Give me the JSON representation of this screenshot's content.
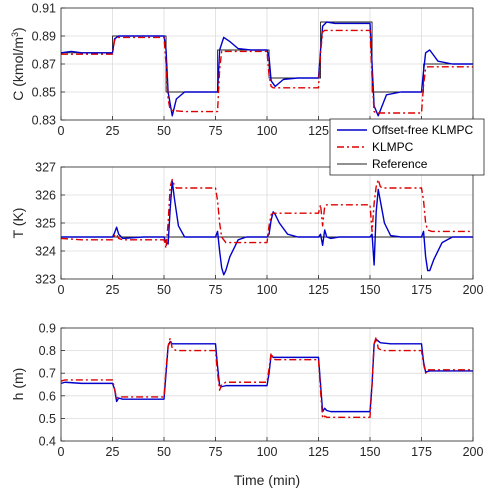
{
  "figure": {
    "xlabel": "Time (min)"
  },
  "legend": {
    "entries": [
      "Offset-free KLMPC",
      "KLMPC",
      "Reference"
    ]
  },
  "colors": {
    "offset_free": "#0000cc",
    "klmpc": "#dd0000",
    "reference": "#222222"
  },
  "chart_data": [
    {
      "type": "line",
      "ylabel_main": "C (kmol/m",
      "ylabel_sup": "3",
      "ylabel_end": ")",
      "xlim": [
        0,
        200
      ],
      "ylim": [
        0.83,
        0.91
      ],
      "xticks": [
        0,
        25,
        50,
        75,
        100,
        125,
        150,
        175,
        200
      ],
      "yticks": [
        0.83,
        0.85,
        0.87,
        0.89,
        0.91
      ],
      "grid": true,
      "legend": "bottom-right",
      "series": [
        {
          "name": "Reference",
          "style": "reference",
          "x": [
            0,
            25,
            25,
            51,
            51,
            76,
            76,
            101,
            101,
            126,
            126,
            151,
            151,
            176,
            176,
            200
          ],
          "y": [
            0.878,
            0.878,
            0.89,
            0.89,
            0.85,
            0.85,
            0.88,
            0.88,
            0.86,
            0.86,
            0.9,
            0.9,
            0.85,
            0.85,
            0.87,
            0.87
          ]
        },
        {
          "name": "Offset-free KLMPC",
          "style": "offset_free",
          "x": [
            0,
            5,
            10,
            15,
            20,
            25,
            26,
            28,
            32,
            40,
            50,
            51,
            52,
            54,
            56,
            60,
            70,
            76,
            77,
            79,
            82,
            86,
            92,
            100,
            101,
            102,
            104,
            108,
            115,
            125,
            126,
            127,
            129,
            133,
            140,
            150,
            151,
            152,
            154,
            158,
            165,
            175,
            176,
            177,
            179,
            183,
            190,
            200
          ],
          "y": [
            0.878,
            0.879,
            0.878,
            0.878,
            0.878,
            0.878,
            0.888,
            0.89,
            0.89,
            0.89,
            0.89,
            0.88,
            0.85,
            0.833,
            0.845,
            0.85,
            0.85,
            0.85,
            0.88,
            0.889,
            0.886,
            0.881,
            0.88,
            0.88,
            0.875,
            0.858,
            0.854,
            0.859,
            0.86,
            0.86,
            0.88,
            0.897,
            0.9,
            0.899,
            0.899,
            0.899,
            0.87,
            0.84,
            0.833,
            0.848,
            0.85,
            0.85,
            0.865,
            0.878,
            0.88,
            0.872,
            0.87,
            0.87
          ]
        },
        {
          "name": "KLMPC",
          "style": "klmpc",
          "x": [
            0,
            10,
            20,
            25,
            26,
            28,
            40,
            50,
            51,
            52,
            53,
            60,
            70,
            76,
            77,
            78,
            90,
            100,
            101,
            102,
            103,
            115,
            125,
            126,
            127,
            128,
            140,
            150,
            151,
            152,
            153,
            165,
            175,
            176,
            177,
            178,
            190,
            200
          ],
          "y": [
            0.877,
            0.877,
            0.877,
            0.877,
            0.887,
            0.889,
            0.889,
            0.889,
            0.87,
            0.845,
            0.837,
            0.836,
            0.836,
            0.836,
            0.866,
            0.879,
            0.879,
            0.879,
            0.862,
            0.854,
            0.853,
            0.853,
            0.853,
            0.878,
            0.893,
            0.894,
            0.894,
            0.894,
            0.86,
            0.836,
            0.835,
            0.835,
            0.835,
            0.855,
            0.867,
            0.868,
            0.868,
            0.868
          ]
        }
      ]
    },
    {
      "type": "line",
      "ylabel_main": "T (K)",
      "xlim": [
        0,
        200
      ],
      "ylim": [
        323,
        327
      ],
      "xticks": [
        0,
        25,
        50,
        75,
        100,
        125,
        150,
        175,
        200
      ],
      "yticks": [
        323,
        324,
        325,
        326,
        327
      ],
      "grid": true,
      "series": [
        {
          "name": "Reference",
          "style": "reference",
          "x": [
            0,
            200
          ],
          "y": [
            324.5,
            324.5
          ]
        },
        {
          "name": "Offset-free KLMPC",
          "style": "offset_free",
          "x": [
            0,
            10,
            20,
            25,
            26,
            27,
            28,
            30,
            40,
            50,
            51,
            52,
            53,
            54,
            55,
            57,
            60,
            65,
            70,
            75,
            76,
            77,
            78,
            79,
            80,
            82,
            86,
            90,
            100,
            101,
            102,
            103,
            104,
            106,
            110,
            115,
            125,
            126,
            127,
            128,
            129,
            131,
            135,
            140,
            150,
            151,
            152,
            153,
            154,
            155,
            157,
            160,
            165,
            175,
            176,
            177,
            178,
            179,
            181,
            185,
            190,
            200
          ],
          "y": [
            324.5,
            324.5,
            324.5,
            324.5,
            324.65,
            324.85,
            324.6,
            324.45,
            324.5,
            324.5,
            324.3,
            324.25,
            325.5,
            326.5,
            325.9,
            324.9,
            324.5,
            324.5,
            324.5,
            324.5,
            324.7,
            324.0,
            323.4,
            323.15,
            323.3,
            323.8,
            324.4,
            324.5,
            324.5,
            324.6,
            325.1,
            325.4,
            325.3,
            325.0,
            324.6,
            324.5,
            324.5,
            324.6,
            324.2,
            324.75,
            324.5,
            324.45,
            324.5,
            324.5,
            324.5,
            324.6,
            323.5,
            325.4,
            326.2,
            325.8,
            325.0,
            324.55,
            324.5,
            324.5,
            324.7,
            323.8,
            323.3,
            323.3,
            323.7,
            324.3,
            324.5,
            324.5
          ]
        },
        {
          "name": "KLMPC",
          "style": "klmpc",
          "x": [
            0,
            10,
            20,
            25,
            26,
            27,
            28,
            30,
            40,
            50,
            51,
            52,
            53,
            54,
            55,
            56,
            60,
            70,
            75,
            76,
            77,
            78,
            80,
            90,
            100,
            101,
            102,
            103,
            104,
            110,
            125,
            126,
            127,
            128,
            129,
            140,
            150,
            151,
            152,
            153,
            154,
            155,
            156,
            160,
            175,
            176,
            177,
            178,
            180,
            190,
            200
          ],
          "y": [
            324.45,
            324.4,
            324.4,
            324.4,
            324.55,
            324.6,
            324.45,
            324.4,
            324.4,
            324.4,
            324.1,
            325.0,
            326.3,
            326.55,
            326.35,
            326.25,
            326.25,
            326.25,
            326.25,
            325.8,
            325.0,
            324.5,
            324.3,
            324.3,
            324.3,
            324.9,
            325.3,
            325.35,
            325.35,
            325.35,
            325.35,
            325.65,
            324.9,
            325.6,
            325.65,
            325.65,
            325.65,
            324.7,
            325.7,
            326.3,
            326.55,
            326.3,
            326.25,
            326.25,
            326.25,
            325.8,
            325.0,
            324.75,
            324.7,
            324.7,
            324.7
          ]
        }
      ]
    },
    {
      "type": "line",
      "ylabel_main": "h (m)",
      "xlim": [
        0,
        200
      ],
      "ylim": [
        0.4,
        0.9
      ],
      "xticks": [
        0,
        25,
        50,
        75,
        100,
        125,
        150,
        175,
        200
      ],
      "yticks": [
        0.4,
        0.5,
        0.6,
        0.7,
        0.8,
        0.9
      ],
      "grid": true,
      "series": [
        {
          "name": "Offset-free KLMPC",
          "style": "offset_free",
          "x": [
            0,
            2,
            10,
            20,
            25,
            26,
            27,
            28,
            30,
            40,
            50,
            51,
            52,
            53,
            54,
            56,
            60,
            70,
            75,
            76,
            77,
            78,
            80,
            90,
            100,
            101,
            102,
            103,
            104,
            110,
            125,
            126,
            127,
            128,
            129,
            131,
            140,
            150,
            151,
            152,
            153,
            155,
            160,
            170,
            175,
            176,
            177,
            179,
            185,
            200
          ],
          "y": [
            0.655,
            0.66,
            0.655,
            0.655,
            0.655,
            0.63,
            0.575,
            0.59,
            0.585,
            0.585,
            0.585,
            0.7,
            0.82,
            0.84,
            0.83,
            0.83,
            0.83,
            0.83,
            0.83,
            0.73,
            0.645,
            0.64,
            0.645,
            0.645,
            0.645,
            0.7,
            0.78,
            0.77,
            0.77,
            0.77,
            0.77,
            0.65,
            0.53,
            0.545,
            0.535,
            0.53,
            0.53,
            0.53,
            0.65,
            0.83,
            0.85,
            0.835,
            0.83,
            0.83,
            0.83,
            0.75,
            0.705,
            0.71,
            0.71,
            0.71
          ]
        },
        {
          "name": "KLMPC",
          "style": "klmpc",
          "x": [
            0,
            2,
            10,
            20,
            25,
            26,
            27,
            28,
            30,
            40,
            50,
            51,
            52,
            53,
            54,
            56,
            60,
            70,
            75,
            76,
            77,
            78,
            80,
            90,
            100,
            101,
            102,
            103,
            104,
            110,
            125,
            126,
            127,
            128,
            129,
            140,
            150,
            151,
            152,
            153,
            154,
            156,
            160,
            170,
            175,
            176,
            177,
            178,
            180,
            200
          ],
          "y": [
            0.665,
            0.67,
            0.67,
            0.67,
            0.67,
            0.63,
            0.59,
            0.595,
            0.595,
            0.595,
            0.595,
            0.72,
            0.82,
            0.855,
            0.81,
            0.8,
            0.8,
            0.8,
            0.8,
            0.7,
            0.625,
            0.65,
            0.66,
            0.66,
            0.66,
            0.72,
            0.79,
            0.765,
            0.76,
            0.76,
            0.76,
            0.62,
            0.5,
            0.51,
            0.505,
            0.505,
            0.505,
            0.65,
            0.83,
            0.86,
            0.81,
            0.8,
            0.8,
            0.8,
            0.8,
            0.74,
            0.7,
            0.715,
            0.715,
            0.715
          ]
        }
      ]
    }
  ]
}
